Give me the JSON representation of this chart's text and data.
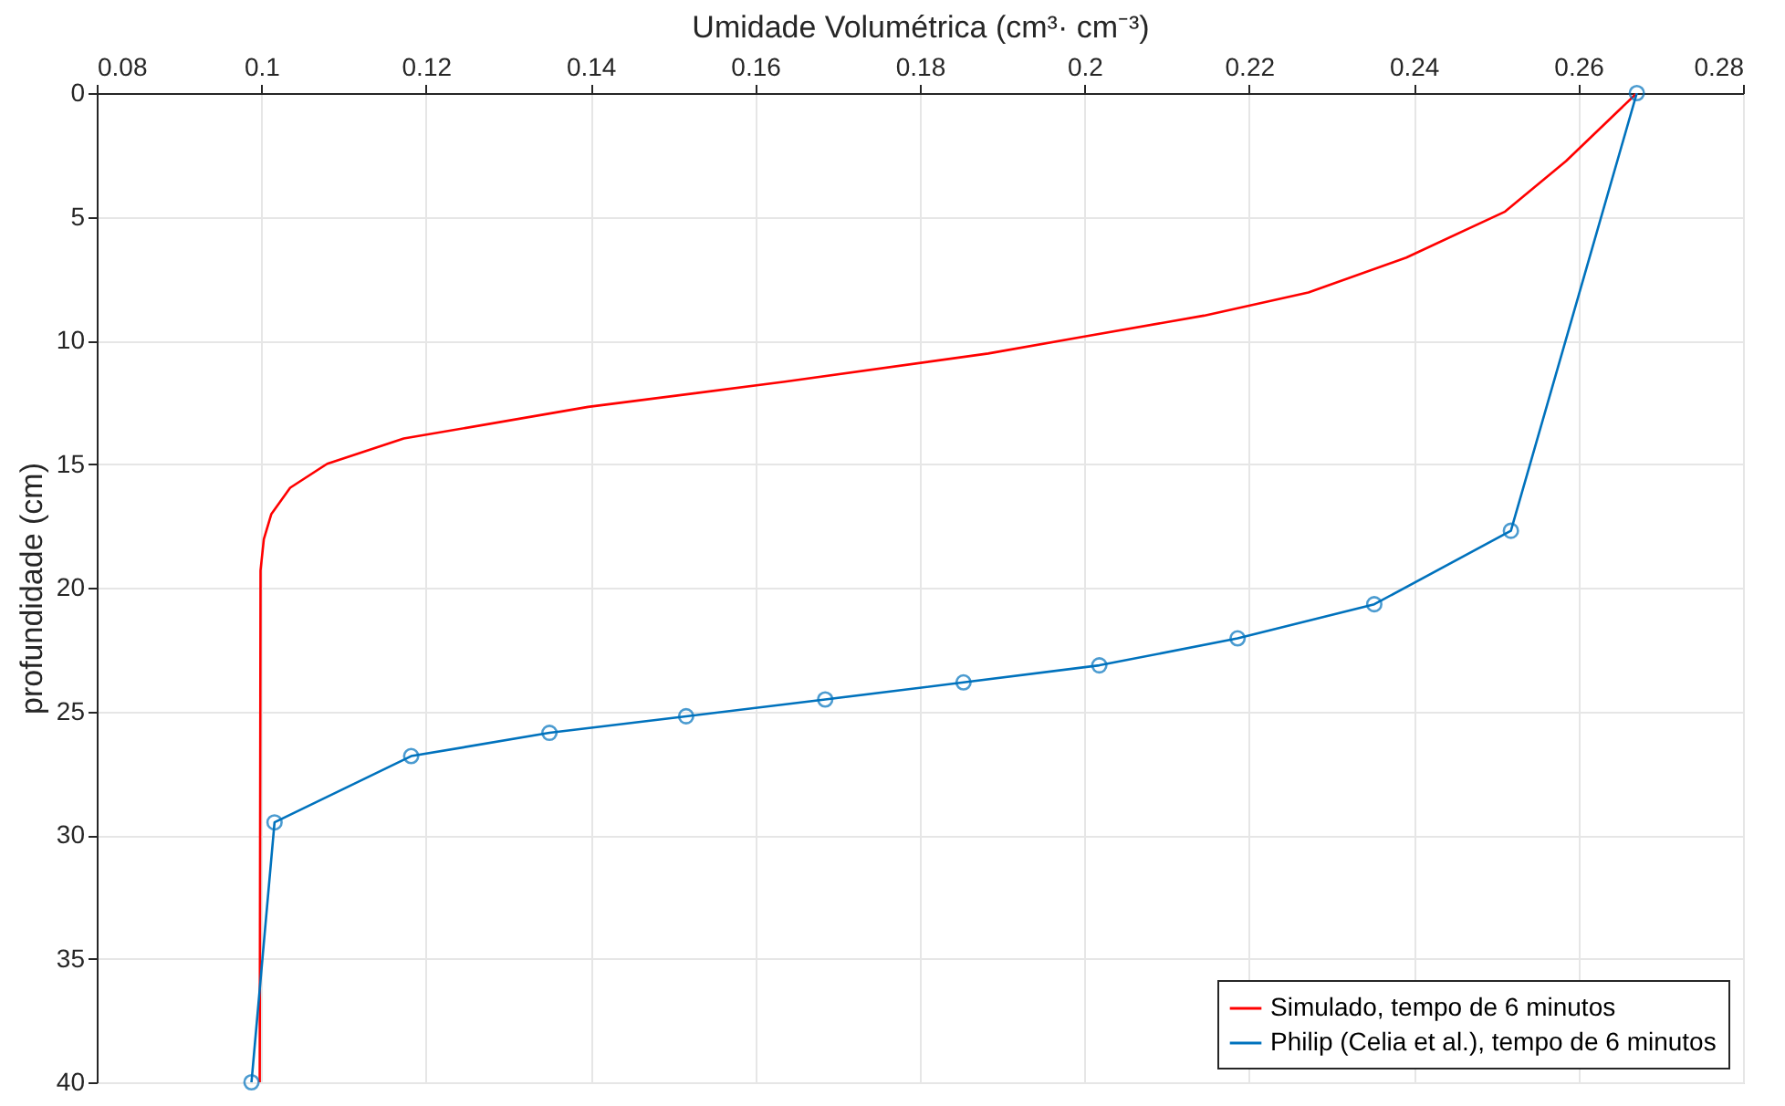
{
  "chart_data": {
    "type": "line",
    "xlabel": "Umidade Volumétrica (cm³· cm⁻³)",
    "ylabel": "profundidade (cm)",
    "xlim": [
      0.08,
      0.28
    ],
    "xticks": [
      0.08,
      0.1,
      0.12,
      0.14,
      0.16,
      0.18,
      0.2,
      0.22,
      0.24,
      0.26,
      0.28
    ],
    "ylim": [
      40,
      0
    ],
    "yticks": [
      0,
      5,
      10,
      15,
      20,
      25,
      30,
      35,
      40
    ],
    "grid": true,
    "legend": "bottom right",
    "line_style": "solid",
    "series": [
      {
        "name": "Simulado, tempo de 6 minutos",
        "color": "#ff0000",
        "marker": "none",
        "x": [
          0.2671,
          0.2585,
          0.2511,
          0.2391,
          0.2272,
          0.2145,
          0.2,
          0.1883,
          0.1636,
          0.1397,
          0.1173,
          0.108,
          0.1035,
          0.1012,
          0.1003,
          0.0999,
          0.0998
        ],
        "values": [
          0,
          2.75,
          4.79,
          6.65,
          8.06,
          9.0,
          9.84,
          10.53,
          11.67,
          12.69,
          13.97,
          14.99,
          15.96,
          17.03,
          18.04,
          19.3,
          40
        ]
      },
      {
        "name": "Philip (Celia et al.), tempo de 6 minutos",
        "color": "#0072bd",
        "marker": "circle",
        "x": [
          0.2671,
          0.2518,
          0.2352,
          0.2186,
          0.2018,
          0.1853,
          0.1685,
          0.1516,
          0.135,
          0.1182,
          0.1016,
          0.0988
        ],
        "values": [
          0,
          17.7,
          20.67,
          22.05,
          23.14,
          23.83,
          24.52,
          25.2,
          25.87,
          26.81,
          29.49,
          40
        ]
      }
    ]
  }
}
